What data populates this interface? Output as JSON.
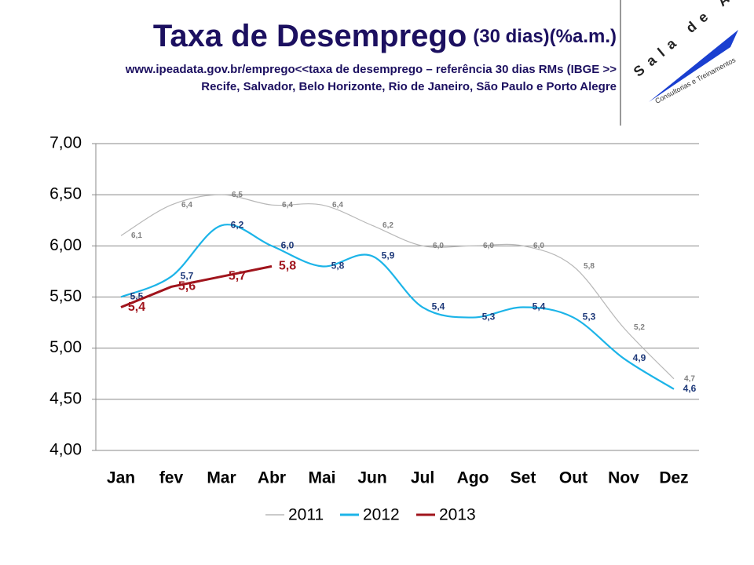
{
  "chart_data": {
    "type": "line",
    "title": "Taxa de Desemprego",
    "title_suffix": "(30 dias)(%a.m.)",
    "subtitle": [
      "www.ipeadata.gov.br/emprego<<taxa de desemprego – referência 30 dias RMs (IBGE >>",
      "Recife, Salvador, Belo Horizonte, Rio de Janeiro, São Paulo e Porto Alegre"
    ],
    "logo": {
      "name": "Sala de Açores",
      "tagline": "Consultorias e Treinamentos"
    },
    "categories": [
      "Jan",
      "fev",
      "Mar",
      "Abr",
      "Mai",
      "Jun",
      "Jul",
      "Ago",
      "Set",
      "Out",
      "Nov",
      "Dez"
    ],
    "series": [
      {
        "name": "2011",
        "color": "#b8b8b8",
        "smooth": true,
        "label_color": "#808080",
        "values": [
          6.1,
          6.4,
          6.5,
          6.4,
          6.4,
          6.2,
          6.0,
          6.0,
          6.0,
          5.8,
          5.2,
          4.7
        ],
        "value_labels": [
          "6,1",
          "6,4",
          "6,5",
          "6,4",
          "6,4",
          "6,2",
          "6,0",
          "6,0",
          "6,0",
          "5,8",
          "5,2",
          "4,7"
        ]
      },
      {
        "name": "2012",
        "color": "#1cb4e8",
        "smooth": true,
        "label_color": "#1f3a7a",
        "values": [
          5.5,
          5.7,
          6.2,
          6.0,
          5.8,
          5.9,
          5.4,
          5.3,
          5.4,
          5.3,
          4.9,
          4.6
        ],
        "value_labels": [
          "5,5",
          "5,7",
          "6,2",
          "6,0",
          "5,8",
          "5,9",
          "5,4",
          "5,3",
          "5,4",
          "5,3",
          "4,9",
          "4,6"
        ]
      },
      {
        "name": "2013",
        "color": "#a0141c",
        "smooth": false,
        "label_color": "#a0141c",
        "values": [
          5.4,
          5.6,
          5.7,
          5.8,
          null,
          null,
          null,
          null,
          null,
          null,
          null,
          null
        ],
        "value_labels": [
          "5,4",
          "5,6",
          "5,7",
          "5,8",
          null,
          null,
          null,
          null,
          null,
          null,
          null,
          null
        ]
      }
    ],
    "ylim": [
      4,
      7
    ],
    "yticks": [
      {
        "value": 4,
        "label": "4,00"
      },
      {
        "value": 4.5,
        "label": "4,50"
      },
      {
        "value": 5,
        "label": "5,00"
      },
      {
        "value": 5.5,
        "label": "5,50"
      },
      {
        "value": 6,
        "label": "6,00"
      },
      {
        "value": 6.5,
        "label": "6,50"
      },
      {
        "value": 7,
        "label": "7,00"
      }
    ],
    "grid": true,
    "legend": "bottom"
  }
}
